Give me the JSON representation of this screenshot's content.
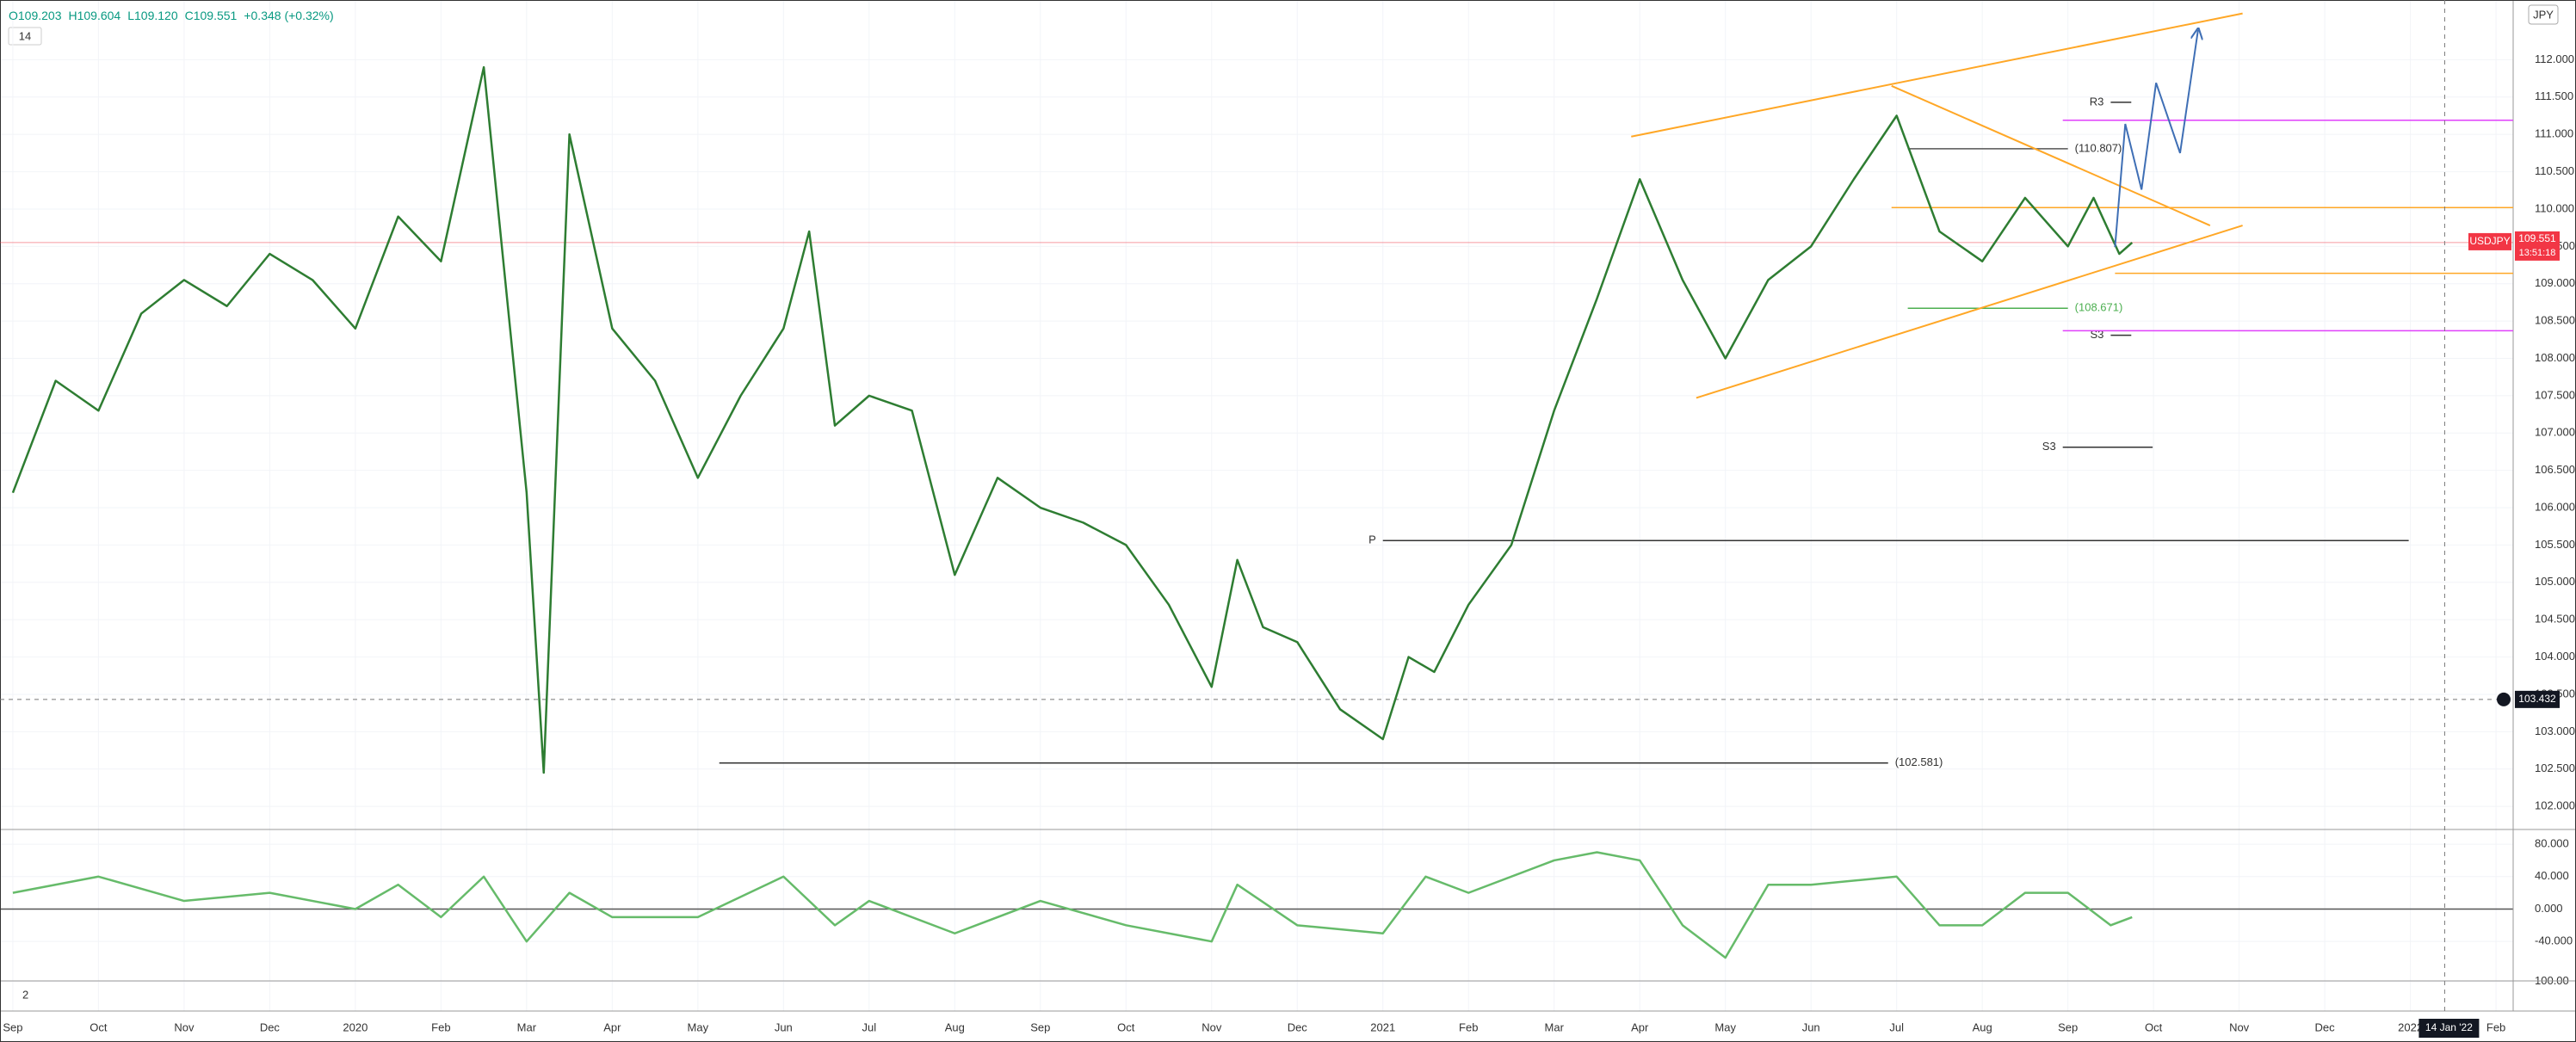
{
  "header": {
    "ohlc": [
      "O109.203",
      "H109.604",
      "L109.120",
      "C109.551"
    ],
    "change": "+0.348 (+0.32%)",
    "interval": "14",
    "currency": "JPY"
  },
  "chart_data": [
    {
      "type": "line",
      "symbol": "USDJPY",
      "xlim": [
        -0.15,
        29.2
      ],
      "xticks": [
        {
          "value": 0,
          "label": "Sep"
        },
        {
          "value": 1,
          "label": "Oct"
        },
        {
          "value": 2,
          "label": "Nov"
        },
        {
          "value": 3,
          "label": "Dec"
        },
        {
          "value": 4,
          "label": "2020"
        },
        {
          "value": 5,
          "label": "Feb"
        },
        {
          "value": 6,
          "label": "Mar"
        },
        {
          "value": 7,
          "label": "Apr"
        },
        {
          "value": 8,
          "label": "May"
        },
        {
          "value": 9,
          "label": "Jun"
        },
        {
          "value": 10,
          "label": "Jul"
        },
        {
          "value": 11,
          "label": "Aug"
        },
        {
          "value": 12,
          "label": "Sep"
        },
        {
          "value": 13,
          "label": "Oct"
        },
        {
          "value": 14,
          "label": "Nov"
        },
        {
          "value": 15,
          "label": "Dec"
        },
        {
          "value": 16,
          "label": "2021"
        },
        {
          "value": 17,
          "label": "Feb"
        },
        {
          "value": 18,
          "label": "Mar"
        },
        {
          "value": 19,
          "label": "Apr"
        },
        {
          "value": 20,
          "label": "May"
        },
        {
          "value": 21,
          "label": "Jun"
        },
        {
          "value": 22,
          "label": "Jul"
        },
        {
          "value": 23,
          "label": "Aug"
        },
        {
          "value": 24,
          "label": "Sep"
        },
        {
          "value": 25,
          "label": "Oct"
        },
        {
          "value": 26,
          "label": "Nov"
        },
        {
          "value": 27,
          "label": "Dec"
        },
        {
          "value": 28,
          "label": "2022"
        },
        {
          "value": 29,
          "label": "Feb"
        }
      ],
      "ylim": [
        101.69,
        112.8
      ],
      "yticks": [
        {
          "value": 102,
          "label": "102.000"
        },
        {
          "value": 102.5,
          "label": "102.500"
        },
        {
          "value": 103,
          "label": "103.000"
        },
        {
          "value": 103.5,
          "label": "103.500"
        },
        {
          "value": 104,
          "label": "104.000"
        },
        {
          "value": 104.5,
          "label": "104.500"
        },
        {
          "value": 105,
          "label": "105.000"
        },
        {
          "value": 105.5,
          "label": "105.500"
        },
        {
          "value": 106,
          "label": "106.000"
        },
        {
          "value": 106.5,
          "label": "106.500"
        },
        {
          "value": 107,
          "label": "107.000"
        },
        {
          "value": 107.5,
          "label": "107.500"
        },
        {
          "value": 108,
          "label": "108.000"
        },
        {
          "value": 108.5,
          "label": "108.500"
        },
        {
          "value": 109,
          "label": "109.000"
        },
        {
          "value": 109.5,
          "label": "109.500"
        },
        {
          "value": 110,
          "label": "110.000"
        },
        {
          "value": 110.5,
          "label": "110.500"
        },
        {
          "value": 111,
          "label": "111.000"
        },
        {
          "value": 111.5,
          "label": "111.500"
        },
        {
          "value": 112,
          "label": "112.000"
        }
      ],
      "series": [
        {
          "color": "#2e7d32",
          "x": [
            0,
            0.5,
            1,
            1.5,
            2,
            2.5,
            3,
            3.5,
            4,
            4.5,
            5,
            5.5,
            6,
            6.2,
            6.5,
            7,
            7.5,
            8,
            8.5,
            9,
            9.3,
            9.6,
            10,
            10.5,
            11,
            11.5,
            12,
            12.5,
            13,
            13.5,
            14,
            14.3,
            14.6,
            15,
            15.5,
            16,
            16.3,
            16.6,
            17,
            17.5,
            18,
            18.5,
            19,
            19.5,
            20,
            20.5,
            21,
            21.5,
            22,
            22.5,
            23,
            23.5,
            24,
            24.3,
            24.6,
            24.75
          ],
          "values": [
            106.2,
            107.7,
            107.3,
            108.6,
            109.05,
            108.7,
            109.4,
            109.05,
            108.4,
            109.9,
            109.3,
            111.9,
            106.2,
            102.45,
            111.0,
            108.4,
            107.7,
            106.4,
            107.5,
            108.4,
            109.7,
            107.1,
            107.5,
            107.3,
            105.1,
            106.4,
            106.0,
            105.8,
            105.5,
            104.7,
            103.6,
            105.3,
            104.4,
            104.2,
            103.3,
            102.9,
            104.0,
            103.8,
            104.7,
            105.5,
            107.3,
            108.8,
            110.4,
            109.05,
            108.0,
            109.05,
            109.5,
            110.4,
            111.25,
            109.7,
            109.3,
            110.15,
            109.5,
            110.15,
            109.4,
            109.551
          ]
        }
      ],
      "levels": [
        {
          "y": 110.807,
          "x": [
            22.13,
            24.0
          ],
          "color": "#555555",
          "label": "(110.807)",
          "side": "right"
        },
        {
          "y": 108.671,
          "x": [
            22.13,
            24.0
          ],
          "color": "#4caf50",
          "label": "(108.671)",
          "side": "right"
        },
        {
          "y": 102.581,
          "x": [
            8.25,
            21.9
          ],
          "color": "#333333",
          "label": "(102.581)",
          "side": "right"
        },
        {
          "y": 105.56,
          "x": [
            16.0,
            27.98
          ],
          "color": "#333333",
          "label": "P",
          "side": "left"
        },
        {
          "y": 111.43,
          "x": [
            24.5,
            24.74
          ],
          "color": "#333333",
          "label": "R3",
          "side": "left"
        },
        {
          "y": 108.31,
          "x": [
            24.5,
            24.74
          ],
          "color": "#333333",
          "label": "S3",
          "side": "left"
        },
        {
          "y": 106.81,
          "x": [
            23.94,
            24.99
          ],
          "color": "#333333",
          "label": "S3",
          "side": "left"
        },
        {
          "y": 111.19,
          "x": [
            23.94,
            29.2
          ],
          "color": "#e040fb"
        },
        {
          "y": 108.37,
          "x": [
            23.94,
            29.2
          ],
          "color": "#e040fb"
        },
        {
          "y": 110.02,
          "x": [
            21.94,
            29.2
          ],
          "color": "#ffa726"
        },
        {
          "y": 109.14,
          "x": [
            24.55,
            29.2
          ],
          "color": "#ffa726"
        }
      ],
      "trendlines": [
        {
          "color": "#ffa726",
          "points": [
            [
              18.9,
              110.97
            ],
            [
              26.04,
              112.62
            ]
          ]
        },
        {
          "color": "#ffa726",
          "points": [
            [
              19.66,
              107.47
            ],
            [
              26.04,
              109.78
            ]
          ]
        },
        {
          "color": "#ffa726",
          "points": [
            [
              21.94,
              111.65
            ],
            [
              25.66,
              109.78
            ]
          ]
        },
        {
          "color": "#3f6fb5",
          "arrow": true,
          "points": [
            [
              24.55,
              109.49
            ],
            [
              24.67,
              111.14
            ],
            [
              24.86,
              110.26
            ],
            [
              25.03,
              111.69
            ],
            [
              25.31,
              110.75
            ],
            [
              25.52,
              112.4
            ]
          ]
        }
      ],
      "last_price": {
        "value": 109.551,
        "label": "109.551",
        "countdown": "13:51:18",
        "color": "#f23645"
      },
      "crosshair": {
        "value": 103.432,
        "label": "103.432",
        "x": 28.4,
        "date": "14 Jan '22"
      }
    },
    {
      "type": "line",
      "ylim": [
        -88.6,
        98.1
      ],
      "yticks": [
        {
          "value": 80,
          "label": "80.000"
        },
        {
          "value": 40,
          "label": "40.000"
        },
        {
          "value": 0,
          "label": "0.000"
        },
        {
          "value": -40,
          "label": "-40.000"
        }
      ],
      "series": [
        {
          "color": "#66bb6a",
          "x": [
            0,
            1,
            2,
            3,
            4,
            4.5,
            5,
            5.5,
            6,
            6.5,
            7,
            8,
            9,
            9.6,
            10,
            11,
            12,
            13,
            14,
            14.3,
            15,
            16,
            16.5,
            17,
            18,
            18.5,
            19,
            19.5,
            20,
            20.5,
            21,
            22,
            22.5,
            23,
            23.5,
            24,
            24.5,
            24.75
          ],
          "values": [
            20,
            40,
            10,
            20,
            0,
            30,
            -10,
            40,
            -40,
            20,
            -10,
            -10,
            40,
            -20,
            10,
            -30,
            10,
            -20,
            -40,
            30,
            -20,
            -30,
            40,
            20,
            60,
            70,
            60,
            -20,
            -60,
            30,
            30,
            40,
            -20,
            -20,
            20,
            20,
            -20,
            -10
          ]
        }
      ]
    },
    {
      "type": "line",
      "label": "2",
      "ylim": [
        0,
        102
      ],
      "yticks": [
        {
          "value": 100,
          "label": "100.00"
        }
      ],
      "series": []
    }
  ]
}
